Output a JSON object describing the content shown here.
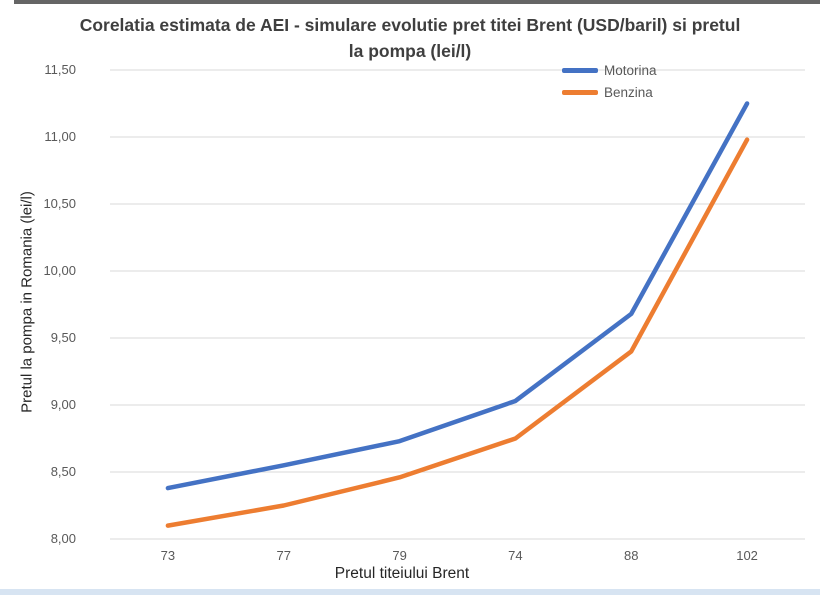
{
  "title": "Corelatia estimata de AEI - simulare evolutie pret titei Brent (USD/baril) si pretul la pompa (lei/l)",
  "axes": {
    "x_title": "Pretul titeiului Brent",
    "y_title": "Pretul la pompa in Romania (lei/l)",
    "y_ticks": [
      "11,50",
      "11,00",
      "10,50",
      "10,00",
      "9,50",
      "9,00",
      "8,50",
      "8,00"
    ]
  },
  "legend": {
    "items": [
      {
        "label": "Motorina",
        "color": "#4472C4"
      },
      {
        "label": "Benzina",
        "color": "#ED7D31"
      }
    ]
  },
  "chart_data": {
    "type": "line",
    "title": "Corelatia estimata de AEI - simulare evolutie pret titei Brent (USD/baril) si pretul la pompa (lei/l)",
    "xlabel": "Pretul titeiului Brent",
    "ylabel": "Pretul la pompa in Romania (lei/l)",
    "categories": [
      "73",
      "77",
      "79",
      "74",
      "88",
      "102"
    ],
    "series": [
      {
        "name": "Motorina",
        "color": "#4472C4",
        "values": [
          8.38,
          8.55,
          8.73,
          9.03,
          9.68,
          11.25
        ]
      },
      {
        "name": "Benzina",
        "color": "#ED7D31",
        "values": [
          8.1,
          8.25,
          8.46,
          8.75,
          9.4,
          10.98
        ]
      }
    ],
    "ylim": [
      8.0,
      11.5
    ],
    "y_step": 0.5,
    "grid": "horizontal",
    "legend_position": "top-right"
  },
  "colors": {
    "gridline": "#d9d9d9",
    "title_text": "#3f3f3f",
    "tick_text": "#595959",
    "axis_title_text": "#262626",
    "top_strip": "#4a4a4a",
    "bottom_strip": "#d7e4f2"
  }
}
